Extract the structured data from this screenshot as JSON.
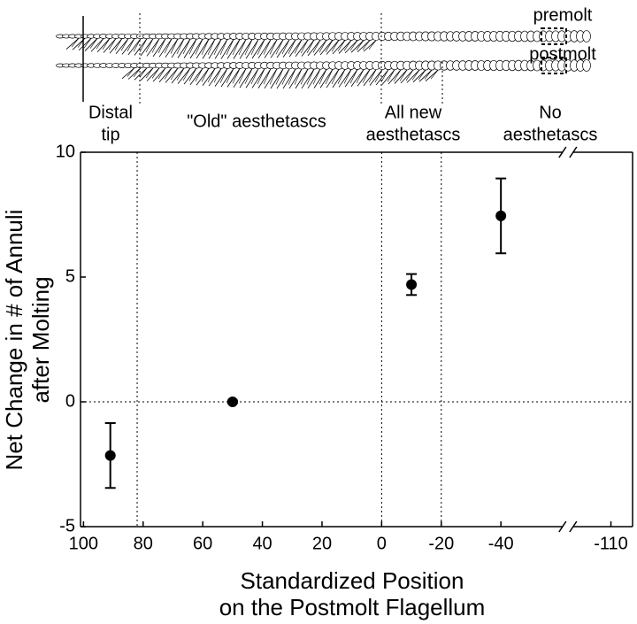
{
  "chart_data": {
    "type": "scatter",
    "x": [
      91,
      50,
      -10,
      -40
    ],
    "values": [
      -2.15,
      0,
      4.7,
      7.45
    ],
    "errors": [
      1.3,
      0.05,
      0.42,
      1.5
    ],
    "color": "#000000",
    "xlim": [
      101,
      -117
    ],
    "x_break": [
      -58,
      -100
    ],
    "xticks": [
      100,
      80,
      60,
      40,
      20,
      0,
      -20,
      -40,
      -110
    ],
    "ylim": [
      -5,
      10
    ],
    "yticks": [
      -5,
      0,
      5,
      10
    ],
    "ref_lines_x": [
      82,
      0,
      -20
    ],
    "ref_lines_y": [
      0
    ],
    "ylabel": [
      "Net Change in # of Annuli",
      "after Molting"
    ],
    "xlabel": [
      "Standardized Position",
      "on the Postmolt Flagellum"
    ],
    "annotations": {
      "premolt": "premolt",
      "postmolt": "postmolt",
      "distal": [
        "Distal",
        "tip"
      ],
      "old": "\"Old\" aesthetascs",
      "new": [
        "All new",
        "aesthetascs"
      ],
      "none": [
        "No",
        "aesthetascs"
      ]
    }
  }
}
